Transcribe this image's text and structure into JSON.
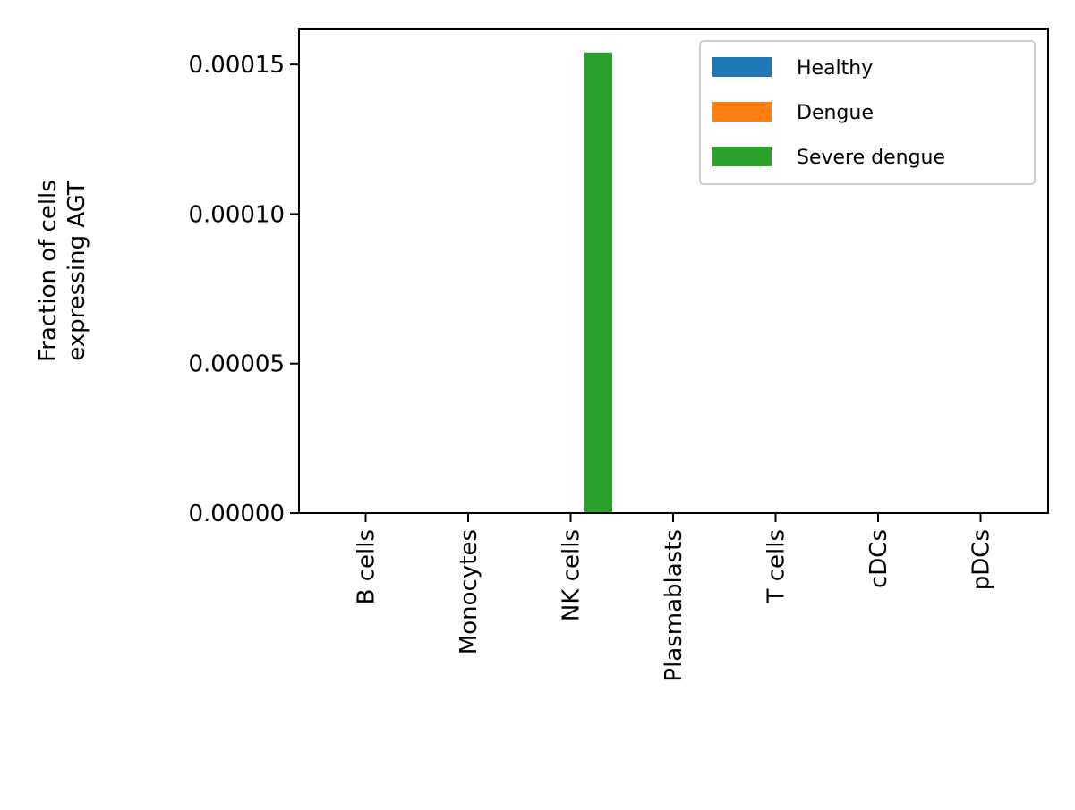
{
  "chart_data": {
    "type": "bar",
    "categories": [
      "B cells",
      "Monocytes",
      "NK cells",
      "Plasmablasts",
      "T cells",
      "cDCs",
      "pDCs"
    ],
    "series": [
      {
        "name": "Healthy",
        "color": "#1f77b4",
        "values": [
          0,
          0,
          0,
          0,
          0,
          0,
          0
        ]
      },
      {
        "name": "Dengue",
        "color": "#ff7f0e",
        "values": [
          0,
          0,
          0,
          0,
          0,
          0,
          0
        ]
      },
      {
        "name": "Severe dengue",
        "color": "#2ca02c",
        "values": [
          0,
          0,
          0.000154,
          0,
          0,
          0,
          0
        ]
      }
    ],
    "ylabel": "Fraction of cells\nexpressing AGT",
    "ylim": [
      0,
      0.000162
    ],
    "yticks": [
      {
        "value": 0,
        "label": "0.00000"
      },
      {
        "value": 5e-05,
        "label": "0.00005"
      },
      {
        "value": 0.0001,
        "label": "0.00010"
      },
      {
        "value": 0.00015,
        "label": "0.00015"
      }
    ],
    "grid": false,
    "legend_position": "top-right"
  }
}
